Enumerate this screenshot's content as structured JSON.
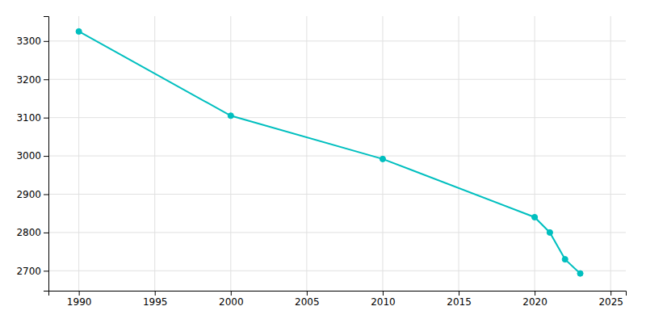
{
  "chart_data": {
    "type": "line",
    "x": [
      1990,
      2000,
      2010,
      2020,
      2021,
      2022,
      2023
    ],
    "values": [
      3325,
      3105,
      2992,
      2840,
      2800,
      2730,
      2693
    ],
    "color": "#00BFBF",
    "marker": "circle",
    "xlim": [
      1988,
      2026
    ],
    "ylim": [
      2648,
      3365
    ],
    "xticks": [
      1990,
      1995,
      2000,
      2005,
      2010,
      2015,
      2020,
      2025
    ],
    "yticks": [
      2700,
      2800,
      2900,
      3000,
      3100,
      3200,
      3300
    ],
    "grid": true
  }
}
